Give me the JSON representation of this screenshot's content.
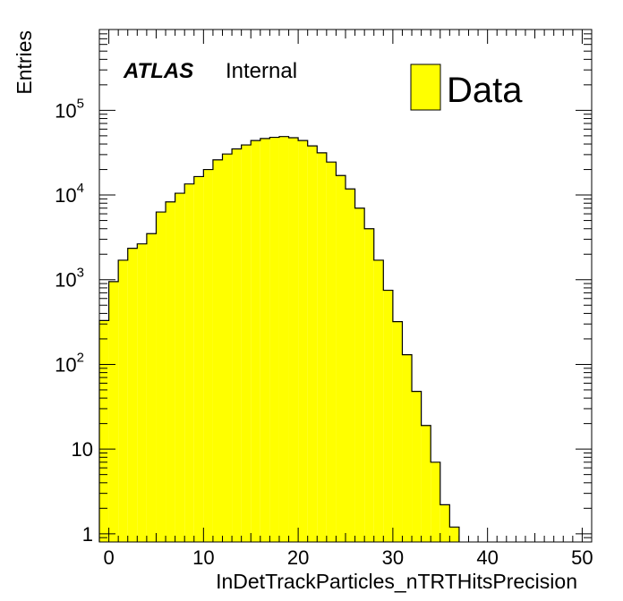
{
  "chart_data": {
    "type": "bar",
    "style": "histogram",
    "x_bin_edges_start": -1,
    "bin_width": 1,
    "values": [
      330,
      950,
      1700,
      2350,
      2650,
      3500,
      6300,
      8300,
      10500,
      13500,
      16500,
      20000,
      26000,
      30500,
      35000,
      39000,
      44000,
      46500,
      48000,
      49000,
      47500,
      44000,
      38000,
      31500,
      24500,
      17000,
      11800,
      7000,
      4000,
      1700,
      750,
      320,
      130,
      48,
      19,
      7,
      2.2,
      1.2
    ],
    "xlabel": "InDetTrackParticles_nTRTHitsPrecision",
    "ylabel": "Entries",
    "xlim": [
      -1,
      51
    ],
    "ylim": [
      0.8,
      900000
    ],
    "y_scale": "log",
    "x_ticks": [
      "0",
      "10",
      "20",
      "30",
      "40",
      "50"
    ],
    "y_ticks": [
      {
        "base": "1",
        "exp": ""
      },
      {
        "base": "10",
        "exp": ""
      },
      {
        "base": "10",
        "exp": "2"
      },
      {
        "base": "10",
        "exp": "3"
      },
      {
        "base": "10",
        "exp": "4"
      },
      {
        "base": "10",
        "exp": "5"
      }
    ],
    "fill_color": "#ffff00",
    "line_color": "#000000",
    "legend": {
      "label": "Data",
      "position": "top-right"
    },
    "labels": {
      "experiment": "ATLAS",
      "status": "Internal"
    },
    "grid": false
  }
}
